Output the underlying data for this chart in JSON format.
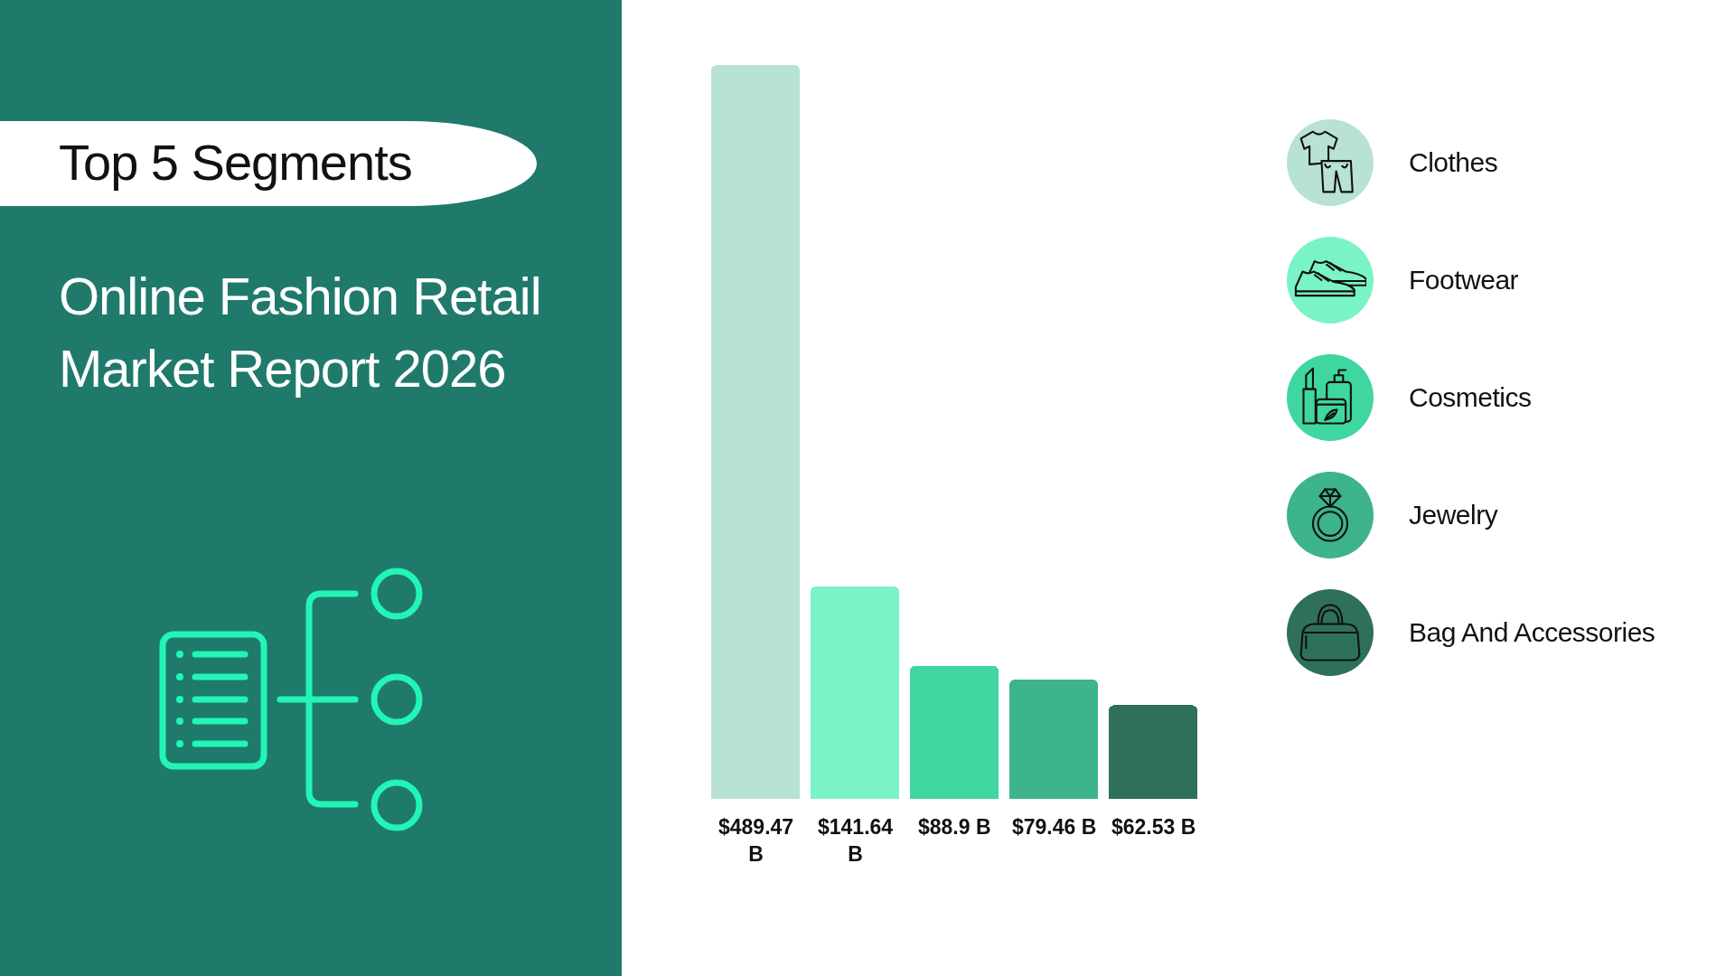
{
  "chart_data": {
    "type": "bar",
    "title": "Top 5 Segments",
    "subtitle": "Online Fashion Retail Market Report 2026",
    "categories": [
      null,
      null,
      null,
      null,
      null
    ],
    "series": [
      {
        "name": "Clothes",
        "color": "#b8e2d3",
        "values": [
          489.47,
          null,
          null,
          null,
          null
        ],
        "value_labels": [
          "$489.47 B",
          null,
          null,
          null,
          null
        ]
      },
      {
        "name": "Footwear",
        "color": "#7af3c6",
        "values": [
          null,
          141.64,
          null,
          null,
          null
        ],
        "value_labels": [
          null,
          "$141.64 B",
          null,
          null,
          null
        ]
      },
      {
        "name": "Cosmetics",
        "color": "#3fd69f",
        "values": [
          null,
          null,
          88.9,
          null,
          null
        ],
        "value_labels": [
          null,
          null,
          "$88.9 B",
          null,
          null
        ]
      },
      {
        "name": "Jewelry",
        "color": "#3db48a",
        "values": [
          null,
          null,
          null,
          79.46,
          null
        ],
        "value_labels": [
          null,
          null,
          null,
          "$79.46 B",
          null
        ]
      },
      {
        "name": "Bag And Accessories",
        "color": "#2e705a",
        "values": [
          null,
          null,
          null,
          null,
          62.53
        ],
        "value_labels": [
          null,
          null,
          null,
          null,
          "$62.53 B"
        ]
      }
    ],
    "stacked": true,
    "tick_labels": false,
    "legend": "right"
  }
}
